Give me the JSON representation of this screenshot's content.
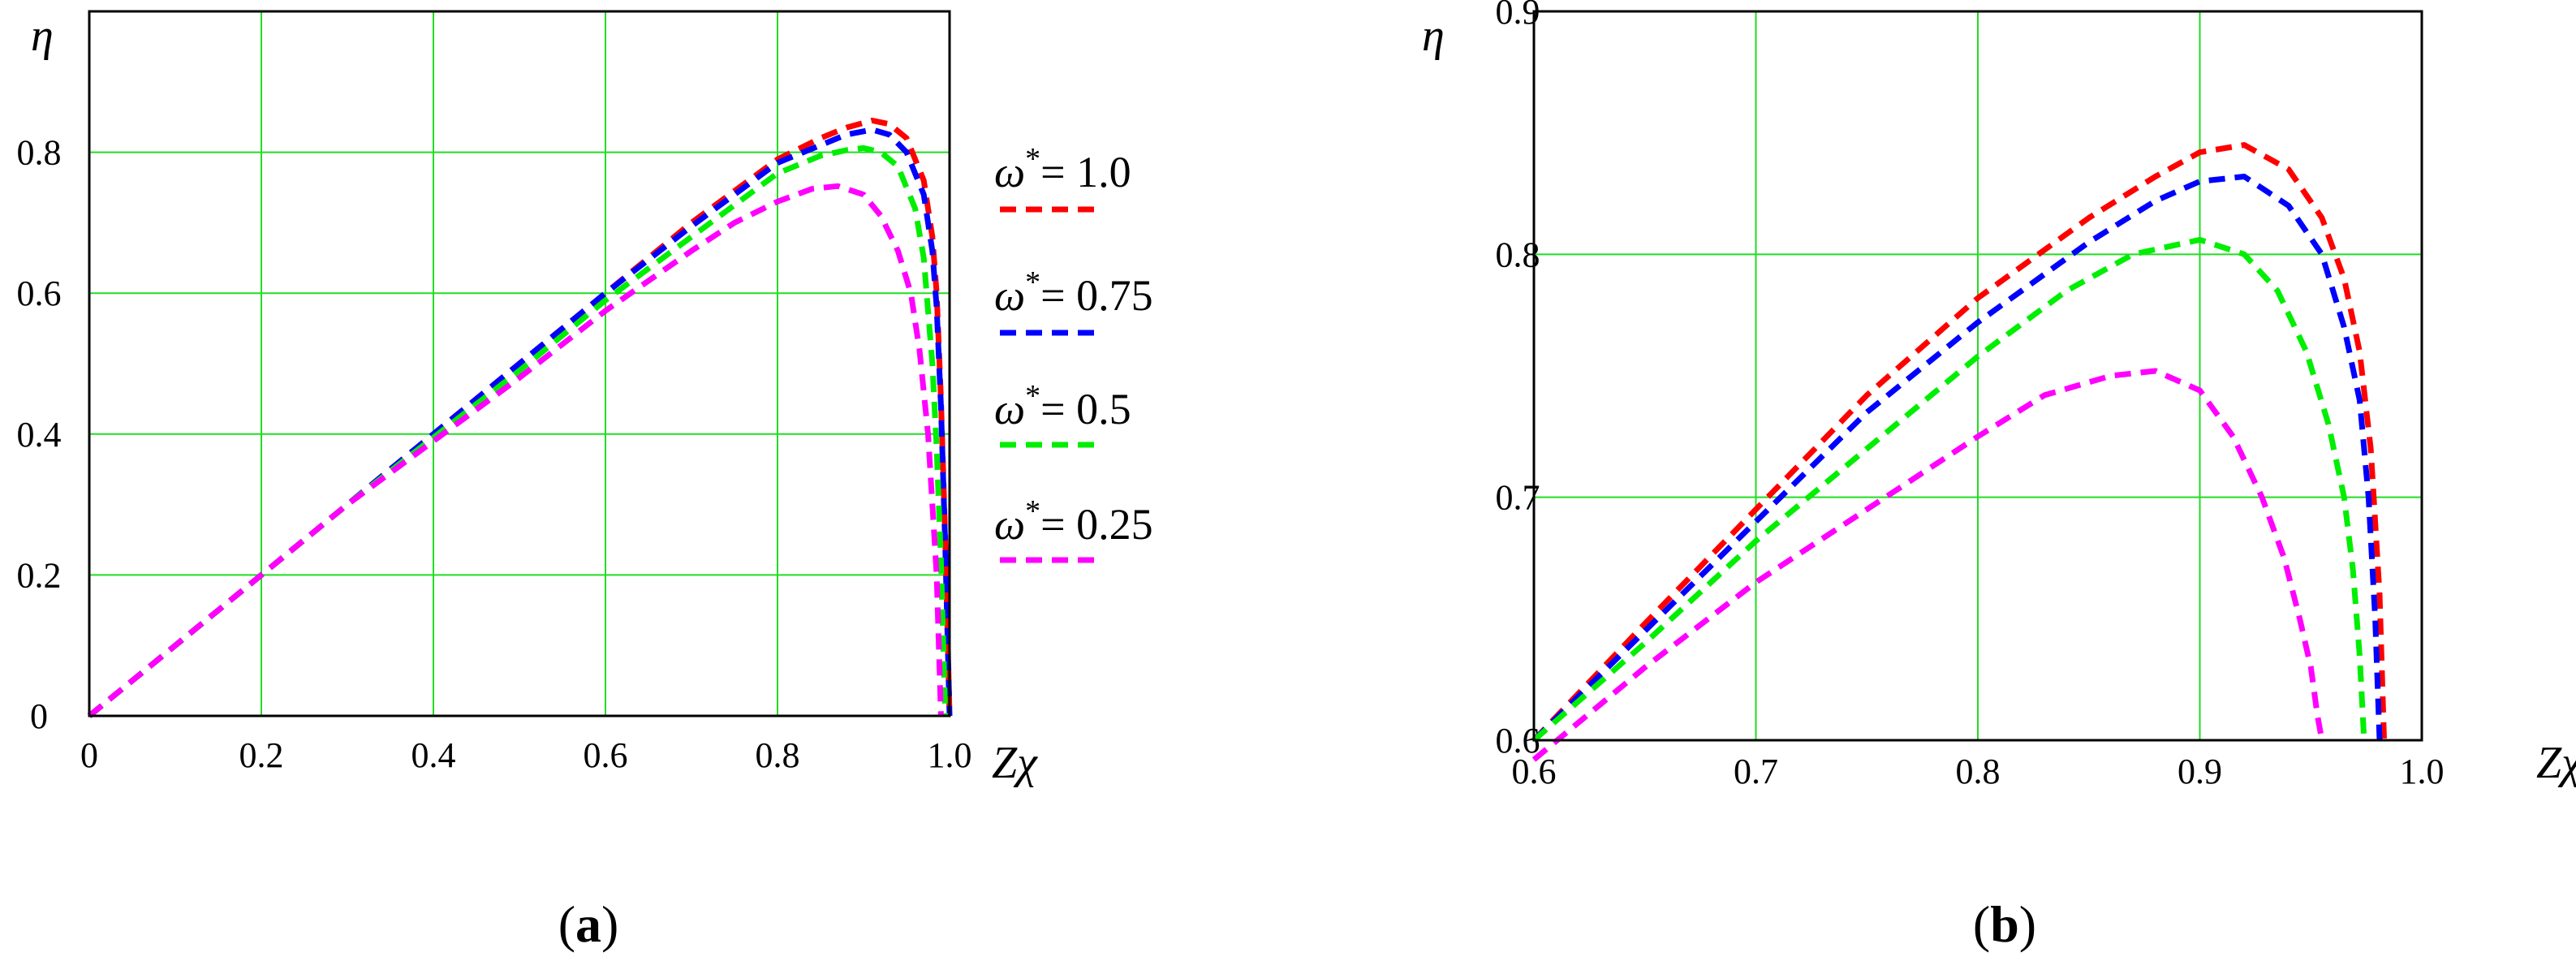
{
  "chart_data": [
    {
      "type": "line",
      "panel_label": "(a)",
      "panel_label_letter": "a",
      "ylabel": "η",
      "xlabel": "Zχ",
      "xlim": [
        0,
        1.0
      ],
      "ylim": [
        0,
        1.0
      ],
      "x_ticks": [
        0,
        0.2,
        0.4,
        0.6,
        0.8,
        1.0
      ],
      "x_tick_labels": [
        "0",
        "0.2",
        "0.4",
        "0.6",
        "0.8",
        "1.0"
      ],
      "y_ticks": [
        0,
        0.2,
        0.4,
        0.6,
        0.8
      ],
      "y_tick_labels": [
        "0",
        "0.2",
        "0.4",
        "0.6",
        "0.8"
      ],
      "grid": true,
      "legend_placement": "right",
      "series": [
        {
          "name": "ω* = 1.0",
          "legend_prefix": "ω",
          "legend_sup": "*",
          "legend_value": "= 1.0",
          "color": "#ff0000",
          "x": [
            0,
            0.1,
            0.2,
            0.3,
            0.4,
            0.5,
            0.6,
            0.7,
            0.8,
            0.85,
            0.88,
            0.91,
            0.93,
            0.95,
            0.97,
            0.98,
            0.985,
            0.99,
            0.995,
            1.0
          ],
          "y": [
            0,
            0.1,
            0.2,
            0.3,
            0.4,
            0.5,
            0.6,
            0.7,
            0.79,
            0.82,
            0.835,
            0.845,
            0.84,
            0.82,
            0.76,
            0.68,
            0.6,
            0.45,
            0.25,
            0.0
          ]
        },
        {
          "name": "ω* = 0.75",
          "legend_prefix": "ω",
          "legend_sup": "*",
          "legend_value": "= 0.75",
          "color": "#0000ff",
          "x": [
            0,
            0.1,
            0.2,
            0.3,
            0.4,
            0.5,
            0.6,
            0.7,
            0.8,
            0.85,
            0.88,
            0.91,
            0.93,
            0.95,
            0.97,
            0.98,
            0.985,
            0.99,
            0.995,
            1.0
          ],
          "y": [
            0,
            0.1,
            0.2,
            0.3,
            0.4,
            0.5,
            0.6,
            0.695,
            0.785,
            0.81,
            0.825,
            0.832,
            0.825,
            0.8,
            0.74,
            0.66,
            0.58,
            0.44,
            0.24,
            0.0
          ]
        },
        {
          "name": "ω* = 0.5",
          "legend_prefix": "ω",
          "legend_sup": "*",
          "legend_value": "= 0.5",
          "color": "#00ee00",
          "x": [
            0,
            0.1,
            0.2,
            0.3,
            0.4,
            0.5,
            0.6,
            0.7,
            0.8,
            0.85,
            0.88,
            0.9,
            0.92,
            0.94,
            0.96,
            0.97,
            0.98,
            0.985,
            0.99,
            0.995
          ],
          "y": [
            0,
            0.1,
            0.2,
            0.3,
            0.395,
            0.49,
            0.59,
            0.68,
            0.77,
            0.795,
            0.803,
            0.806,
            0.8,
            0.78,
            0.72,
            0.65,
            0.5,
            0.38,
            0.22,
            0.0
          ]
        },
        {
          "name": "ω* = 0.25",
          "legend_prefix": "ω",
          "legend_sup": "*",
          "legend_value": "= 0.25",
          "color": "#ff00ff",
          "x": [
            0,
            0.1,
            0.2,
            0.3,
            0.4,
            0.5,
            0.6,
            0.7,
            0.75,
            0.8,
            0.84,
            0.87,
            0.9,
            0.92,
            0.94,
            0.955,
            0.965,
            0.975,
            0.985,
            0.99
          ],
          "y": [
            0,
            0.1,
            0.2,
            0.3,
            0.39,
            0.48,
            0.575,
            0.66,
            0.7,
            0.73,
            0.748,
            0.752,
            0.74,
            0.71,
            0.66,
            0.6,
            0.52,
            0.4,
            0.2,
            0.0
          ]
        }
      ]
    },
    {
      "type": "line",
      "panel_label": "(b)",
      "panel_label_letter": "b",
      "ylabel": "η",
      "xlabel": "Zχ",
      "xlim": [
        0.6,
        1.0
      ],
      "ylim": [
        0.6,
        0.9
      ],
      "x_ticks": [
        0.6,
        0.7,
        0.8,
        0.9,
        1.0
      ],
      "x_tick_labels": [
        "0.6",
        "0.7",
        "0.8",
        "0.9",
        "1.0"
      ],
      "y_ticks": [
        0.6,
        0.7,
        0.8,
        0.9
      ],
      "y_tick_labels": [
        "0.6",
        "0.7",
        "0.8",
        "0.9"
      ],
      "grid": true,
      "series": [
        {
          "name": "ω* = 1.0",
          "color": "#ff0000",
          "x": [
            0.6,
            0.65,
            0.7,
            0.75,
            0.8,
            0.85,
            0.88,
            0.9,
            0.92,
            0.94,
            0.955,
            0.965,
            0.972,
            0.977,
            0.981,
            0.983
          ],
          "y": [
            0.6,
            0.648,
            0.695,
            0.742,
            0.782,
            0.815,
            0.832,
            0.842,
            0.845,
            0.835,
            0.815,
            0.79,
            0.76,
            0.72,
            0.66,
            0.6
          ]
        },
        {
          "name": "ω* = 0.75",
          "color": "#0000ff",
          "x": [
            0.6,
            0.65,
            0.7,
            0.75,
            0.8,
            0.85,
            0.88,
            0.9,
            0.92,
            0.94,
            0.955,
            0.965,
            0.972,
            0.976,
            0.979,
            0.981
          ],
          "y": [
            0.6,
            0.645,
            0.69,
            0.735,
            0.772,
            0.805,
            0.822,
            0.83,
            0.832,
            0.82,
            0.8,
            0.77,
            0.74,
            0.7,
            0.65,
            0.6
          ]
        },
        {
          "name": "ω* = 0.5",
          "color": "#00ee00",
          "x": [
            0.6,
            0.65,
            0.7,
            0.75,
            0.8,
            0.84,
            0.87,
            0.9,
            0.92,
            0.935,
            0.948,
            0.958,
            0.965,
            0.969,
            0.972,
            0.974
          ],
          "y": [
            0.6,
            0.64,
            0.682,
            0.72,
            0.758,
            0.785,
            0.8,
            0.806,
            0.8,
            0.785,
            0.76,
            0.73,
            0.7,
            0.67,
            0.635,
            0.6
          ]
        },
        {
          "name": "ω* = 0.25",
          "color": "#ff00ff",
          "x": [
            0.6,
            0.65,
            0.7,
            0.75,
            0.8,
            0.83,
            0.86,
            0.88,
            0.9,
            0.915,
            0.928,
            0.938,
            0.945,
            0.95,
            0.953,
            0.955
          ],
          "y": [
            0.592,
            0.63,
            0.665,
            0.695,
            0.725,
            0.742,
            0.75,
            0.752,
            0.744,
            0.725,
            0.7,
            0.675,
            0.65,
            0.63,
            0.61,
            0.6
          ]
        }
      ]
    }
  ]
}
